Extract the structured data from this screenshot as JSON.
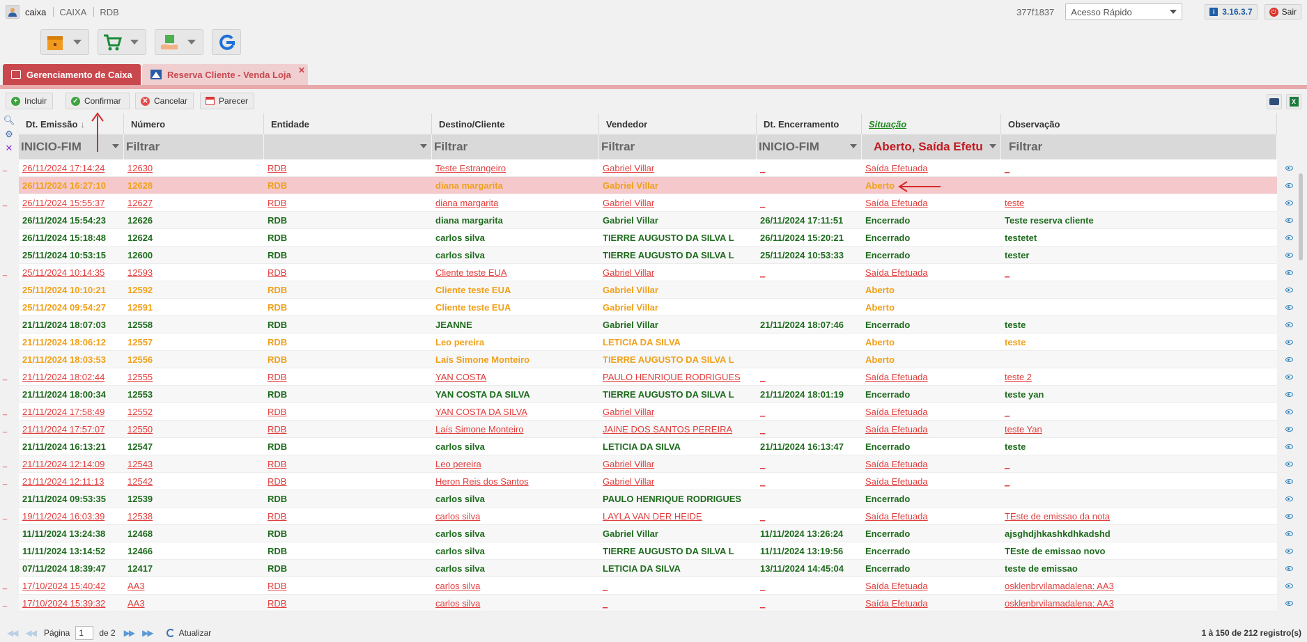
{
  "topbar": {
    "user": "caixa",
    "module": "CAIXA",
    "company": "RDB",
    "session_code": "377f1837",
    "quick_access": "Acesso Rápido",
    "version": "3.16.3.7",
    "logout": "Sair"
  },
  "launchers": [
    "box-icon",
    "cart-icon",
    "package-hand-icon",
    "refresh-g-icon"
  ],
  "tabs": [
    {
      "label": "Gerenciamento de Caixa",
      "active": true
    },
    {
      "label": "Reserva Cliente - Venda Loja",
      "active": false
    }
  ],
  "toolbar": {
    "incluir": "Incluir",
    "confirmar": "Confirmar",
    "cancelar": "Cancelar",
    "parecer": "Parecer"
  },
  "columns": {
    "emissao": "Dt. Emissão",
    "numero": "Número",
    "entidade": "Entidade",
    "destino": "Destino/Cliente",
    "vendedor": "Vendedor",
    "encerramento": "Dt. Encerramento",
    "situacao": "Situação",
    "observacao": "Observação"
  },
  "filters": {
    "emissao": "INICIO-FIM",
    "numero": "Filtrar",
    "entidade": "",
    "destino": "Filtrar",
    "vendedor": "Filtrar",
    "encerramento": "INICIO-FIM",
    "situacao": "Aberto, Saída Efetu",
    "observacao": "Filtrar"
  },
  "rows": [
    {
      "style": "red",
      "marker": "_",
      "emissao": "26/11/2024 17:14:24",
      "numero": "12630",
      "entidade": "RDB",
      "destino": "Teste Estrangeiro",
      "vendedor": "Gabriel Villar",
      "encerramento": "_",
      "situacao": "Saída Efetuada",
      "observacao": "_"
    },
    {
      "style": "orange selected",
      "marker": "",
      "emissao": "26/11/2024 16:27:10",
      "numero": "12628",
      "entidade": "RDB",
      "destino": "diana margarita",
      "vendedor": "Gabriel Villar",
      "encerramento": "",
      "situacao": "Aberto",
      "observacao": ""
    },
    {
      "style": "red",
      "marker": "_",
      "emissao": "26/11/2024 15:55:37",
      "numero": "12627",
      "entidade": "RDB",
      "destino": "diana margarita",
      "vendedor": "Gabriel Villar",
      "encerramento": "_",
      "situacao": "Saída Efetuada",
      "observacao": "teste"
    },
    {
      "style": "green",
      "marker": "",
      "emissao": "26/11/2024 15:54:23",
      "numero": "12626",
      "entidade": "RDB",
      "destino": "diana margarita",
      "vendedor": "Gabriel Villar",
      "encerramento": "26/11/2024 17:11:51",
      "situacao": "Encerrado",
      "observacao": "Teste reserva cliente"
    },
    {
      "style": "green",
      "marker": "",
      "emissao": "26/11/2024 15:18:48",
      "numero": "12624",
      "entidade": "RDB",
      "destino": "carlos silva",
      "vendedor": "TIERRE AUGUSTO DA SILVA L",
      "encerramento": "26/11/2024 15:20:21",
      "situacao": "Encerrado",
      "observacao": "testetet"
    },
    {
      "style": "green",
      "marker": "",
      "emissao": "25/11/2024 10:53:15",
      "numero": "12600",
      "entidade": "RDB",
      "destino": "carlos silva",
      "vendedor": "TIERRE AUGUSTO DA SILVA L",
      "encerramento": "25/11/2024 10:53:33",
      "situacao": "Encerrado",
      "observacao": "tester"
    },
    {
      "style": "red",
      "marker": "_",
      "emissao": "25/11/2024 10:14:35",
      "numero": "12593",
      "entidade": "RDB",
      "destino": "Cliente teste EUA",
      "vendedor": "Gabriel Villar",
      "encerramento": "_",
      "situacao": "Saída Efetuada",
      "observacao": "_"
    },
    {
      "style": "orange",
      "marker": "",
      "emissao": "25/11/2024 10:10:21",
      "numero": "12592",
      "entidade": "RDB",
      "destino": "Cliente teste EUA",
      "vendedor": "Gabriel Villar",
      "encerramento": "",
      "situacao": "Aberto",
      "observacao": ""
    },
    {
      "style": "orange",
      "marker": "",
      "emissao": "25/11/2024 09:54:27",
      "numero": "12591",
      "entidade": "RDB",
      "destino": "Cliente teste EUA",
      "vendedor": "Gabriel Villar",
      "encerramento": "",
      "situacao": "Aberto",
      "observacao": ""
    },
    {
      "style": "green",
      "marker": "",
      "emissao": "21/11/2024 18:07:03",
      "numero": "12558",
      "entidade": "RDB",
      "destino": "JEANNE",
      "vendedor": "Gabriel Villar",
      "encerramento": "21/11/2024 18:07:46",
      "situacao": "Encerrado",
      "observacao": "teste"
    },
    {
      "style": "orange",
      "marker": "",
      "emissao": "21/11/2024 18:06:12",
      "numero": "12557",
      "entidade": "RDB",
      "destino": "Leo pereira",
      "vendedor": "LETICIA DA SILVA",
      "encerramento": "",
      "situacao": "Aberto",
      "observacao": "teste"
    },
    {
      "style": "orange",
      "marker": "",
      "emissao": "21/11/2024 18:03:53",
      "numero": "12556",
      "entidade": "RDB",
      "destino": "Laís Simone Monteiro",
      "vendedor": "TIERRE AUGUSTO DA SILVA L",
      "encerramento": "",
      "situacao": "Aberto",
      "observacao": ""
    },
    {
      "style": "red",
      "marker": "_",
      "emissao": "21/11/2024 18:02:44",
      "numero": "12555",
      "entidade": "RDB",
      "destino": "YAN COSTA",
      "vendedor": "PAULO HENRIQUE RODRIGUES",
      "encerramento": "_",
      "situacao": "Saída Efetuada",
      "observacao": "teste 2"
    },
    {
      "style": "green",
      "marker": "",
      "emissao": "21/11/2024 18:00:34",
      "numero": "12553",
      "entidade": "RDB",
      "destino": "YAN COSTA DA SILVA",
      "vendedor": "TIERRE AUGUSTO DA SILVA L",
      "encerramento": "21/11/2024 18:01:19",
      "situacao": "Encerrado",
      "observacao": "teste yan"
    },
    {
      "style": "red",
      "marker": "_",
      "emissao": "21/11/2024 17:58:49",
      "numero": "12552",
      "entidade": "RDB",
      "destino": "YAN COSTA DA SILVA",
      "vendedor": "Gabriel Villar",
      "encerramento": "_",
      "situacao": "Saída Efetuada",
      "observacao": "_"
    },
    {
      "style": "red",
      "marker": "_",
      "emissao": "21/11/2024 17:57:07",
      "numero": "12550",
      "entidade": "RDB",
      "destino": "Laís Simone Monteiro",
      "vendedor": "JAINE DOS SANTOS PEREIRA",
      "encerramento": "_",
      "situacao": "Saída Efetuada",
      "observacao": "teste Yan"
    },
    {
      "style": "green",
      "marker": "",
      "emissao": "21/11/2024 16:13:21",
      "numero": "12547",
      "entidade": "RDB",
      "destino": "carlos silva",
      "vendedor": "LETICIA DA SILVA",
      "encerramento": "21/11/2024 16:13:47",
      "situacao": "Encerrado",
      "observacao": "teste"
    },
    {
      "style": "red",
      "marker": "_",
      "emissao": "21/11/2024 12:14:09",
      "numero": "12543",
      "entidade": "RDB",
      "destino": "Leo pereira",
      "vendedor": "Gabriel Villar",
      "encerramento": "_",
      "situacao": "Saída Efetuada",
      "observacao": "_"
    },
    {
      "style": "red",
      "marker": "_",
      "emissao": "21/11/2024 12:11:13",
      "numero": "12542",
      "entidade": "RDB",
      "destino": "Heron Reis dos Santos",
      "vendedor": "Gabriel Villar",
      "encerramento": "_",
      "situacao": "Saída Efetuada",
      "observacao": "_"
    },
    {
      "style": "green",
      "marker": "",
      "emissao": "21/11/2024 09:53:35",
      "numero": "12539",
      "entidade": "RDB",
      "destino": "carlos silva",
      "vendedor": "PAULO HENRIQUE RODRIGUES",
      "encerramento": "",
      "situacao": "Encerrado",
      "observacao": ""
    },
    {
      "style": "red",
      "marker": "_",
      "emissao": "19/11/2024 16:03:39",
      "numero": "12538",
      "entidade": "RDB",
      "destino": "carlos silva",
      "vendedor": "LAYLA VAN DER HEIDE",
      "encerramento": "_",
      "situacao": "Saída Efetuada",
      "observacao": "TEste de emissao da nota"
    },
    {
      "style": "green",
      "marker": "",
      "emissao": "11/11/2024 13:24:38",
      "numero": "12468",
      "entidade": "RDB",
      "destino": "carlos silva",
      "vendedor": "Gabriel Villar",
      "encerramento": "11/11/2024 13:26:24",
      "situacao": "Encerrado",
      "observacao": "ajsghdjhkashkdhkadshd"
    },
    {
      "style": "green",
      "marker": "",
      "emissao": "11/11/2024 13:14:52",
      "numero": "12466",
      "entidade": "RDB",
      "destino": "carlos silva",
      "vendedor": "TIERRE AUGUSTO DA SILVA L",
      "encerramento": "11/11/2024 13:19:56",
      "situacao": "Encerrado",
      "observacao": "TEste de emissao novo"
    },
    {
      "style": "green",
      "marker": "",
      "emissao": "07/11/2024 18:39:47",
      "numero": "12417",
      "entidade": "RDB",
      "destino": "carlos silva",
      "vendedor": "LETICIA DA SILVA",
      "encerramento": "13/11/2024 14:45:04",
      "situacao": "Encerrado",
      "observacao": "teste de emissao"
    },
    {
      "style": "red",
      "marker": "_",
      "emissao": "17/10/2024 15:40:42",
      "numero": "AA3",
      "entidade": "RDB",
      "destino": "carlos silva",
      "vendedor": "_",
      "encerramento": "_",
      "situacao": "Saída Efetuada",
      "observacao": "osklenbrvilamadalena: AA3"
    },
    {
      "style": "red",
      "marker": "_",
      "emissao": "17/10/2024 15:39:32",
      "numero": "AA3",
      "entidade": "RDB",
      "destino": "carlos silva",
      "vendedor": "_",
      "encerramento": "_",
      "situacao": "Saída Efetuada",
      "observacao": "osklenbrvilamadalena: AA3"
    }
  ],
  "footer": {
    "page_label": "Página",
    "page_value": "1",
    "of_pages": "de 2",
    "refresh": "Atualizar",
    "range": "1 à 150 de 212 registro(s)"
  }
}
